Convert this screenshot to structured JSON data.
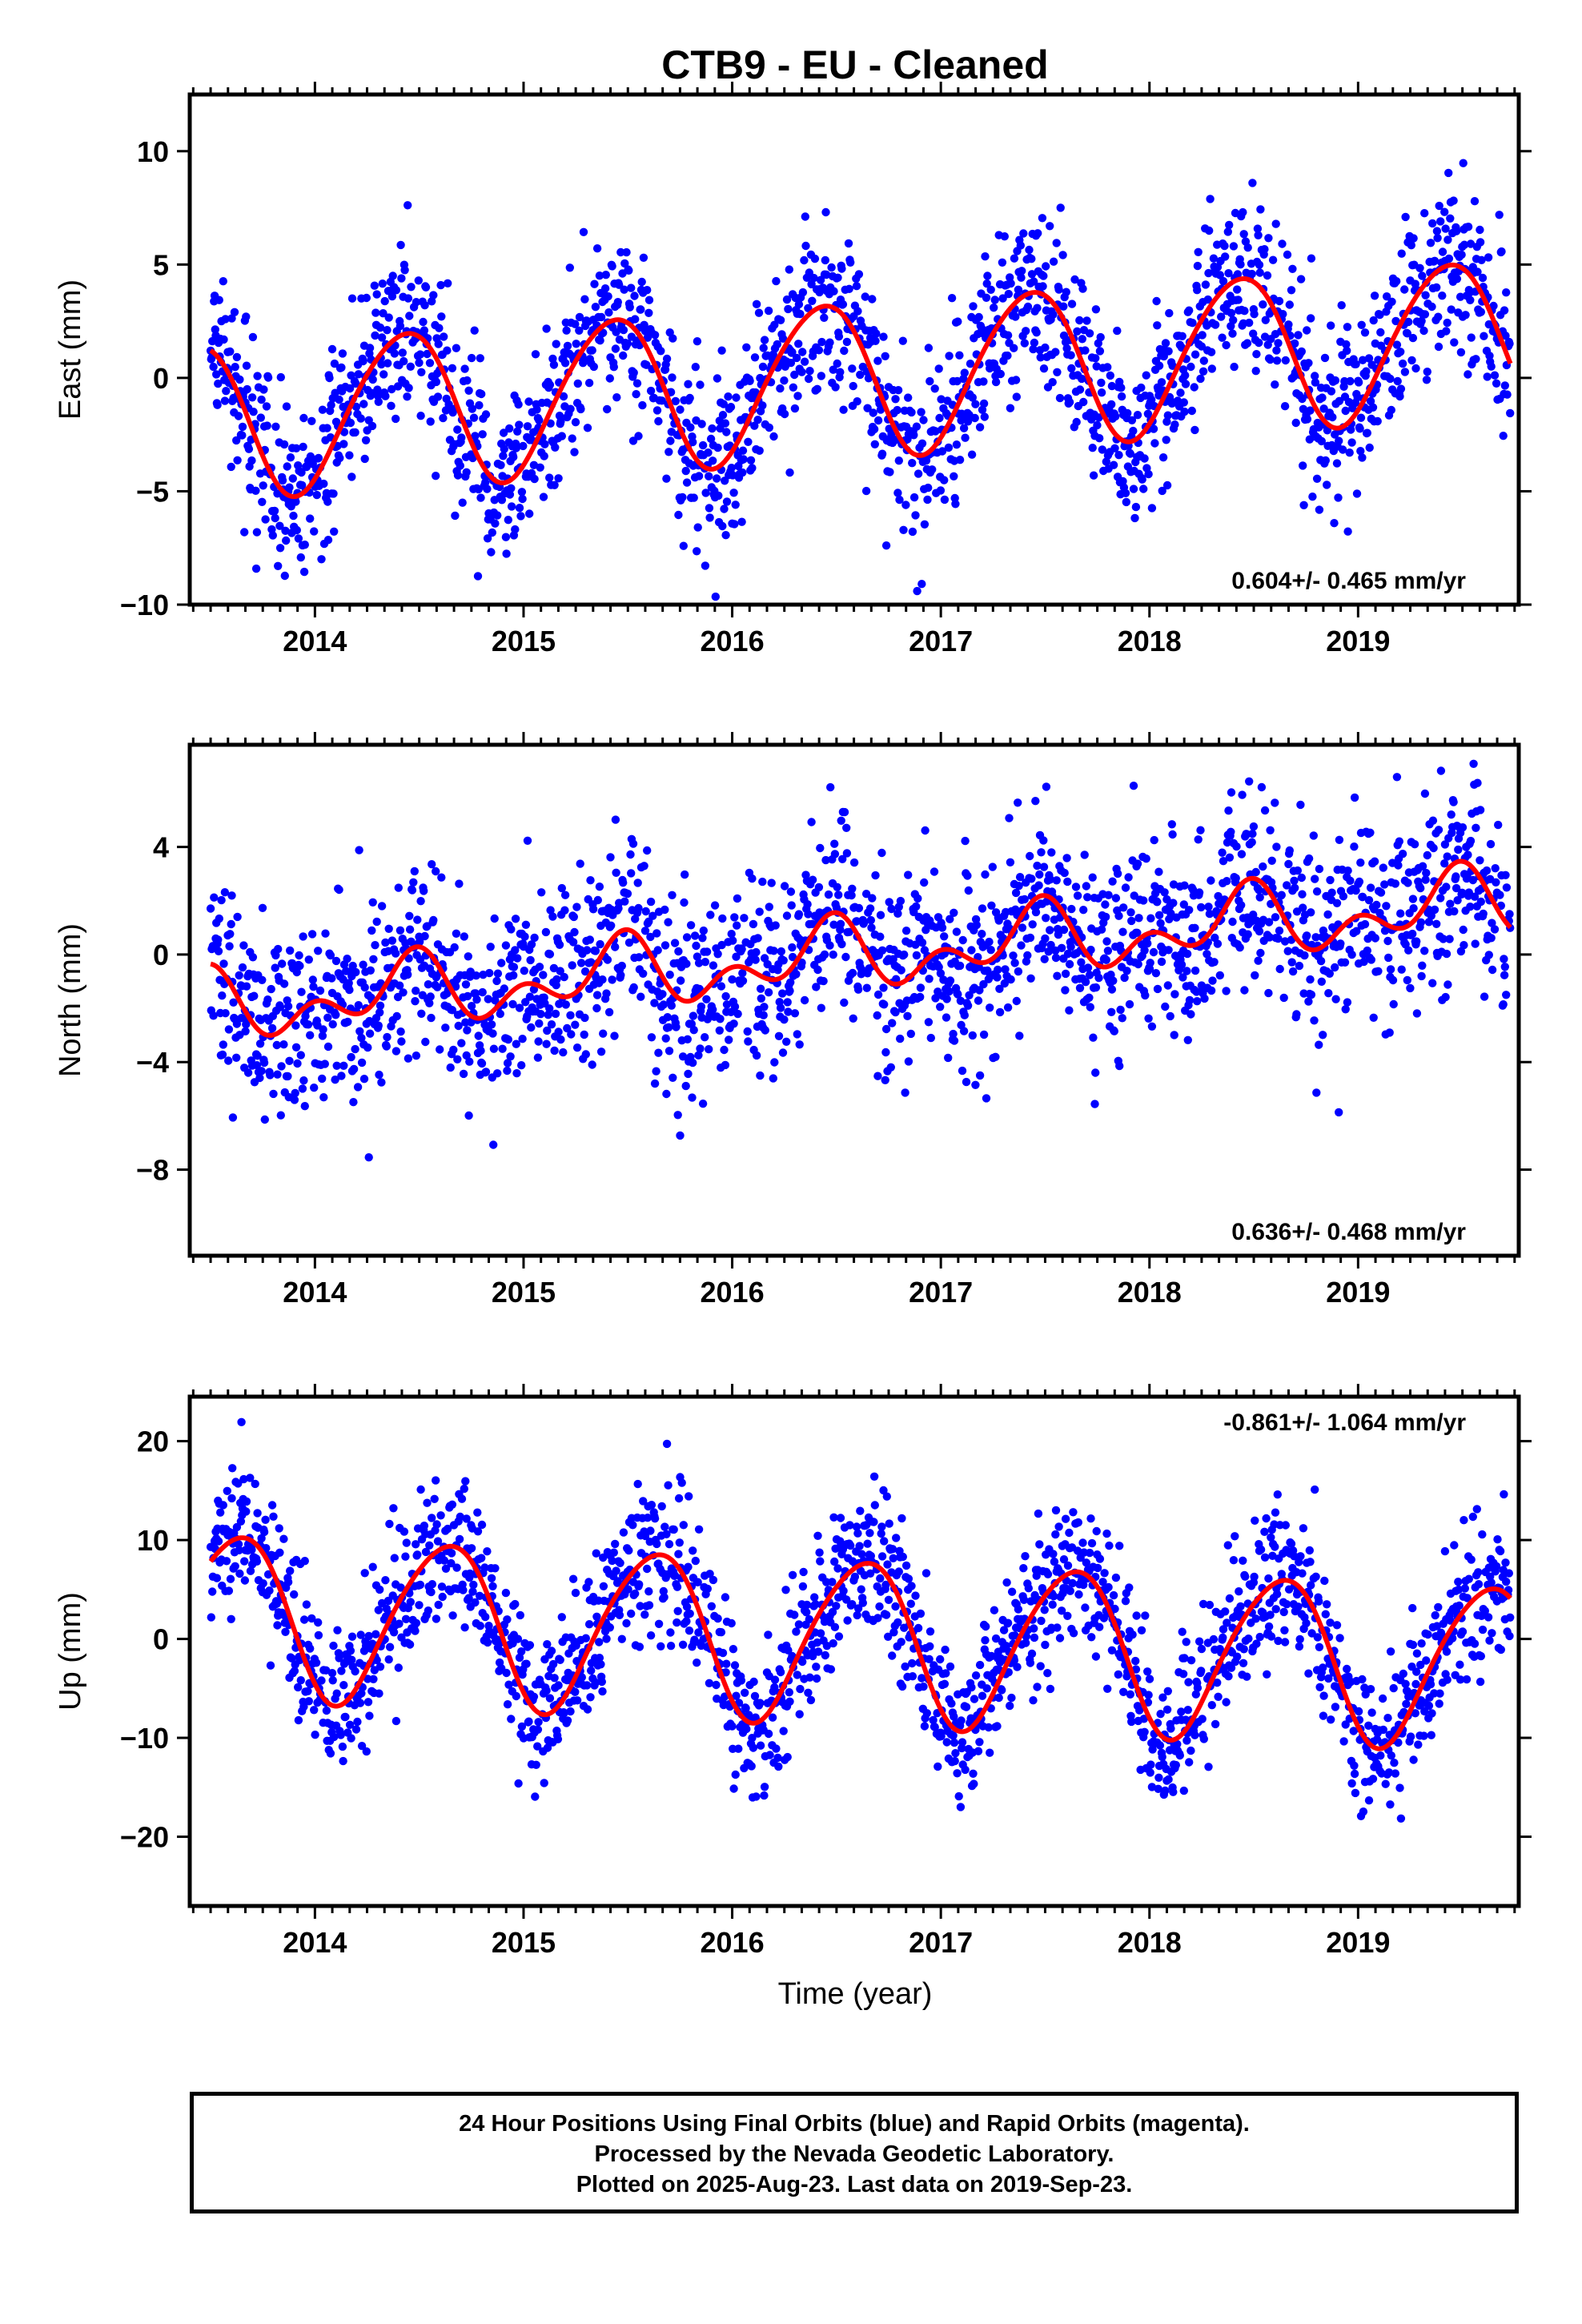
{
  "chart_data": [
    {
      "type": "scatter",
      "title": "CTB9  - EU - Cleaned",
      "ylabel": "East (mm)",
      "xlabel": "",
      "xlim": [
        2013.4,
        2019.77
      ],
      "ylim": [
        -10,
        12.5
      ],
      "yticks": [
        -10,
        -5,
        0,
        5,
        10
      ],
      "xticks": [
        2014,
        2015,
        2016,
        2017,
        2018,
        2019
      ],
      "rate_label": "0.604+/- 0.465 mm/yr",
      "rate_position": "bottom-right",
      "series": [
        {
          "color": "#0000ff",
          "marker": "dot",
          "model": {
            "offset": -0.05,
            "trend_mm_per_yr": 0.604,
            "t0": 2016.5,
            "annual_amp": 3.4,
            "annual_peak": 2016.42,
            "semiannual_amp": 0.3,
            "semiannual_peak": 2016.1,
            "noise_sd": 1.9,
            "start": 2013.5,
            "end": 2019.73
          }
        },
        {
          "color": "#ff0000",
          "line": true
        }
      ]
    },
    {
      "type": "scatter",
      "ylabel": "North (mm)",
      "xlabel": "",
      "xlim": [
        2013.4,
        2019.77
      ],
      "ylim": [
        -11.2,
        7.8
      ],
      "yticks": [
        -8,
        -4,
        0,
        4
      ],
      "xticks": [
        2014,
        2015,
        2016,
        2017,
        2018,
        2019
      ],
      "rate_label": "0.636+/- 0.468 mm/yr",
      "rate_position": "bottom-right",
      "series": [
        {
          "color": "#0000ff",
          "marker": "dot",
          "model": {
            "offset": -0.1,
            "trend_mm_per_yr": 0.636,
            "t0": 2016.5,
            "annual_amp": 0.9,
            "annual_peak": 2016.45,
            "semiannual_amp": 0.8,
            "semiannual_peak": 2016.0,
            "noise_sd": 1.8,
            "start": 2013.5,
            "end": 2019.73
          }
        },
        {
          "color": "#ff0000",
          "line": true
        }
      ]
    },
    {
      "type": "scatter",
      "ylabel": "Up (mm)",
      "xlabel": "Time (year)",
      "xlim": [
        2013.4,
        2019.77
      ],
      "ylim": [
        -27,
        24.5
      ],
      "yticks": [
        -20,
        -10,
        0,
        10,
        20
      ],
      "xticks": [
        2014,
        2015,
        2016,
        2017,
        2018,
        2019
      ],
      "rate_label": "-0.861+/- 1.064 mm/yr",
      "rate_position": "top-right",
      "series": [
        {
          "color": "#0000ff",
          "marker": "dot",
          "model": {
            "offset": 0.0,
            "trend_mm_per_yr": -0.861,
            "t0": 2016.5,
            "annual_amp": 8.2,
            "annual_peak": 2016.62,
            "semiannual_amp": 0.9,
            "semiannual_peak": 2016.3,
            "noise_sd": 3.8,
            "start": 2013.5,
            "end": 2019.73
          }
        },
        {
          "color": "#ff0000",
          "line": true
        }
      ]
    }
  ],
  "footer": {
    "line1": "24 Hour Positions Using Final Orbits (blue) and Rapid Orbits (magenta).",
    "line2": "Processed by the Nevada Geodetic Laboratory.",
    "line3": "Plotted on 2025-Aug-23. Last data on 2019-Sep-23."
  }
}
